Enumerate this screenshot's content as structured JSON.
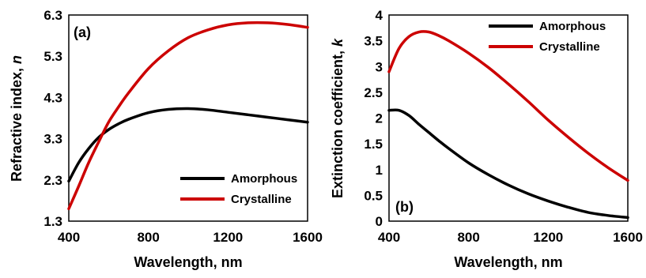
{
  "chart_data": [
    {
      "type": "line",
      "panel_label": "(a)",
      "xlabel": "Wavelength, nm",
      "ylabel": "Refractive index, ",
      "ylabel_symbol": "n",
      "xlim": [
        400,
        1600
      ],
      "ylim": [
        1.3,
        6.3
      ],
      "xticks": [
        400,
        800,
        1200,
        1600
      ],
      "yticks": [
        1.3,
        2.3,
        3.3,
        4.3,
        5.3,
        6.3
      ],
      "ytick_labels": [
        "1.3",
        "2.3",
        "3.3",
        "4.3",
        "5.3",
        "6.3"
      ],
      "grid": false,
      "legend_position": "bottom-right",
      "series": [
        {
          "name": "Amorphous",
          "color": "#000000",
          "x": [
            400,
            450,
            500,
            550,
            600,
            650,
            700,
            800,
            900,
            1000,
            1100,
            1200,
            1300,
            1400,
            1500,
            1600
          ],
          "y": [
            2.27,
            2.72,
            3.06,
            3.33,
            3.52,
            3.66,
            3.77,
            3.93,
            4.01,
            4.03,
            4.0,
            3.94,
            3.88,
            3.82,
            3.76,
            3.7
          ]
        },
        {
          "name": "Crystalline",
          "color": "#cc0000",
          "x": [
            400,
            450,
            500,
            550,
            600,
            650,
            700,
            800,
            900,
            1000,
            1100,
            1200,
            1300,
            1400,
            1500,
            1600
          ],
          "y": [
            1.6,
            2.15,
            2.72,
            3.22,
            3.7,
            4.07,
            4.41,
            5.0,
            5.43,
            5.75,
            5.94,
            6.06,
            6.11,
            6.11,
            6.07,
            6.0
          ]
        }
      ]
    },
    {
      "type": "line",
      "panel_label": "(b)",
      "xlabel": "Wavelength, nm",
      "ylabel": "Extinction coefficient, ",
      "ylabel_symbol": "k",
      "xlim": [
        400,
        1600
      ],
      "ylim": [
        0,
        4
      ],
      "xticks": [
        400,
        800,
        1200,
        1600
      ],
      "yticks": [
        0,
        0.5,
        1,
        1.5,
        2,
        2.5,
        3,
        3.5,
        4
      ],
      "ytick_labels": [
        "0",
        "0.5",
        "1",
        "1.5",
        "2",
        "2.5",
        "3",
        "3.5",
        "4"
      ],
      "grid": false,
      "legend_position": "top-right",
      "series": [
        {
          "name": "Amorphous",
          "color": "#000000",
          "x": [
            400,
            450,
            500,
            550,
            600,
            650,
            700,
            800,
            900,
            1000,
            1100,
            1200,
            1300,
            1400,
            1500,
            1600
          ],
          "y": [
            2.15,
            2.15,
            2.05,
            1.88,
            1.72,
            1.56,
            1.41,
            1.13,
            0.9,
            0.7,
            0.53,
            0.39,
            0.27,
            0.17,
            0.11,
            0.07
          ]
        },
        {
          "name": "Crystalline",
          "color": "#cc0000",
          "x": [
            400,
            450,
            500,
            550,
            600,
            650,
            700,
            800,
            900,
            1000,
            1100,
            1200,
            1300,
            1400,
            1500,
            1600
          ],
          "y": [
            2.9,
            3.35,
            3.58,
            3.67,
            3.67,
            3.6,
            3.5,
            3.26,
            2.98,
            2.66,
            2.32,
            1.96,
            1.63,
            1.32,
            1.04,
            0.79
          ]
        }
      ]
    }
  ]
}
